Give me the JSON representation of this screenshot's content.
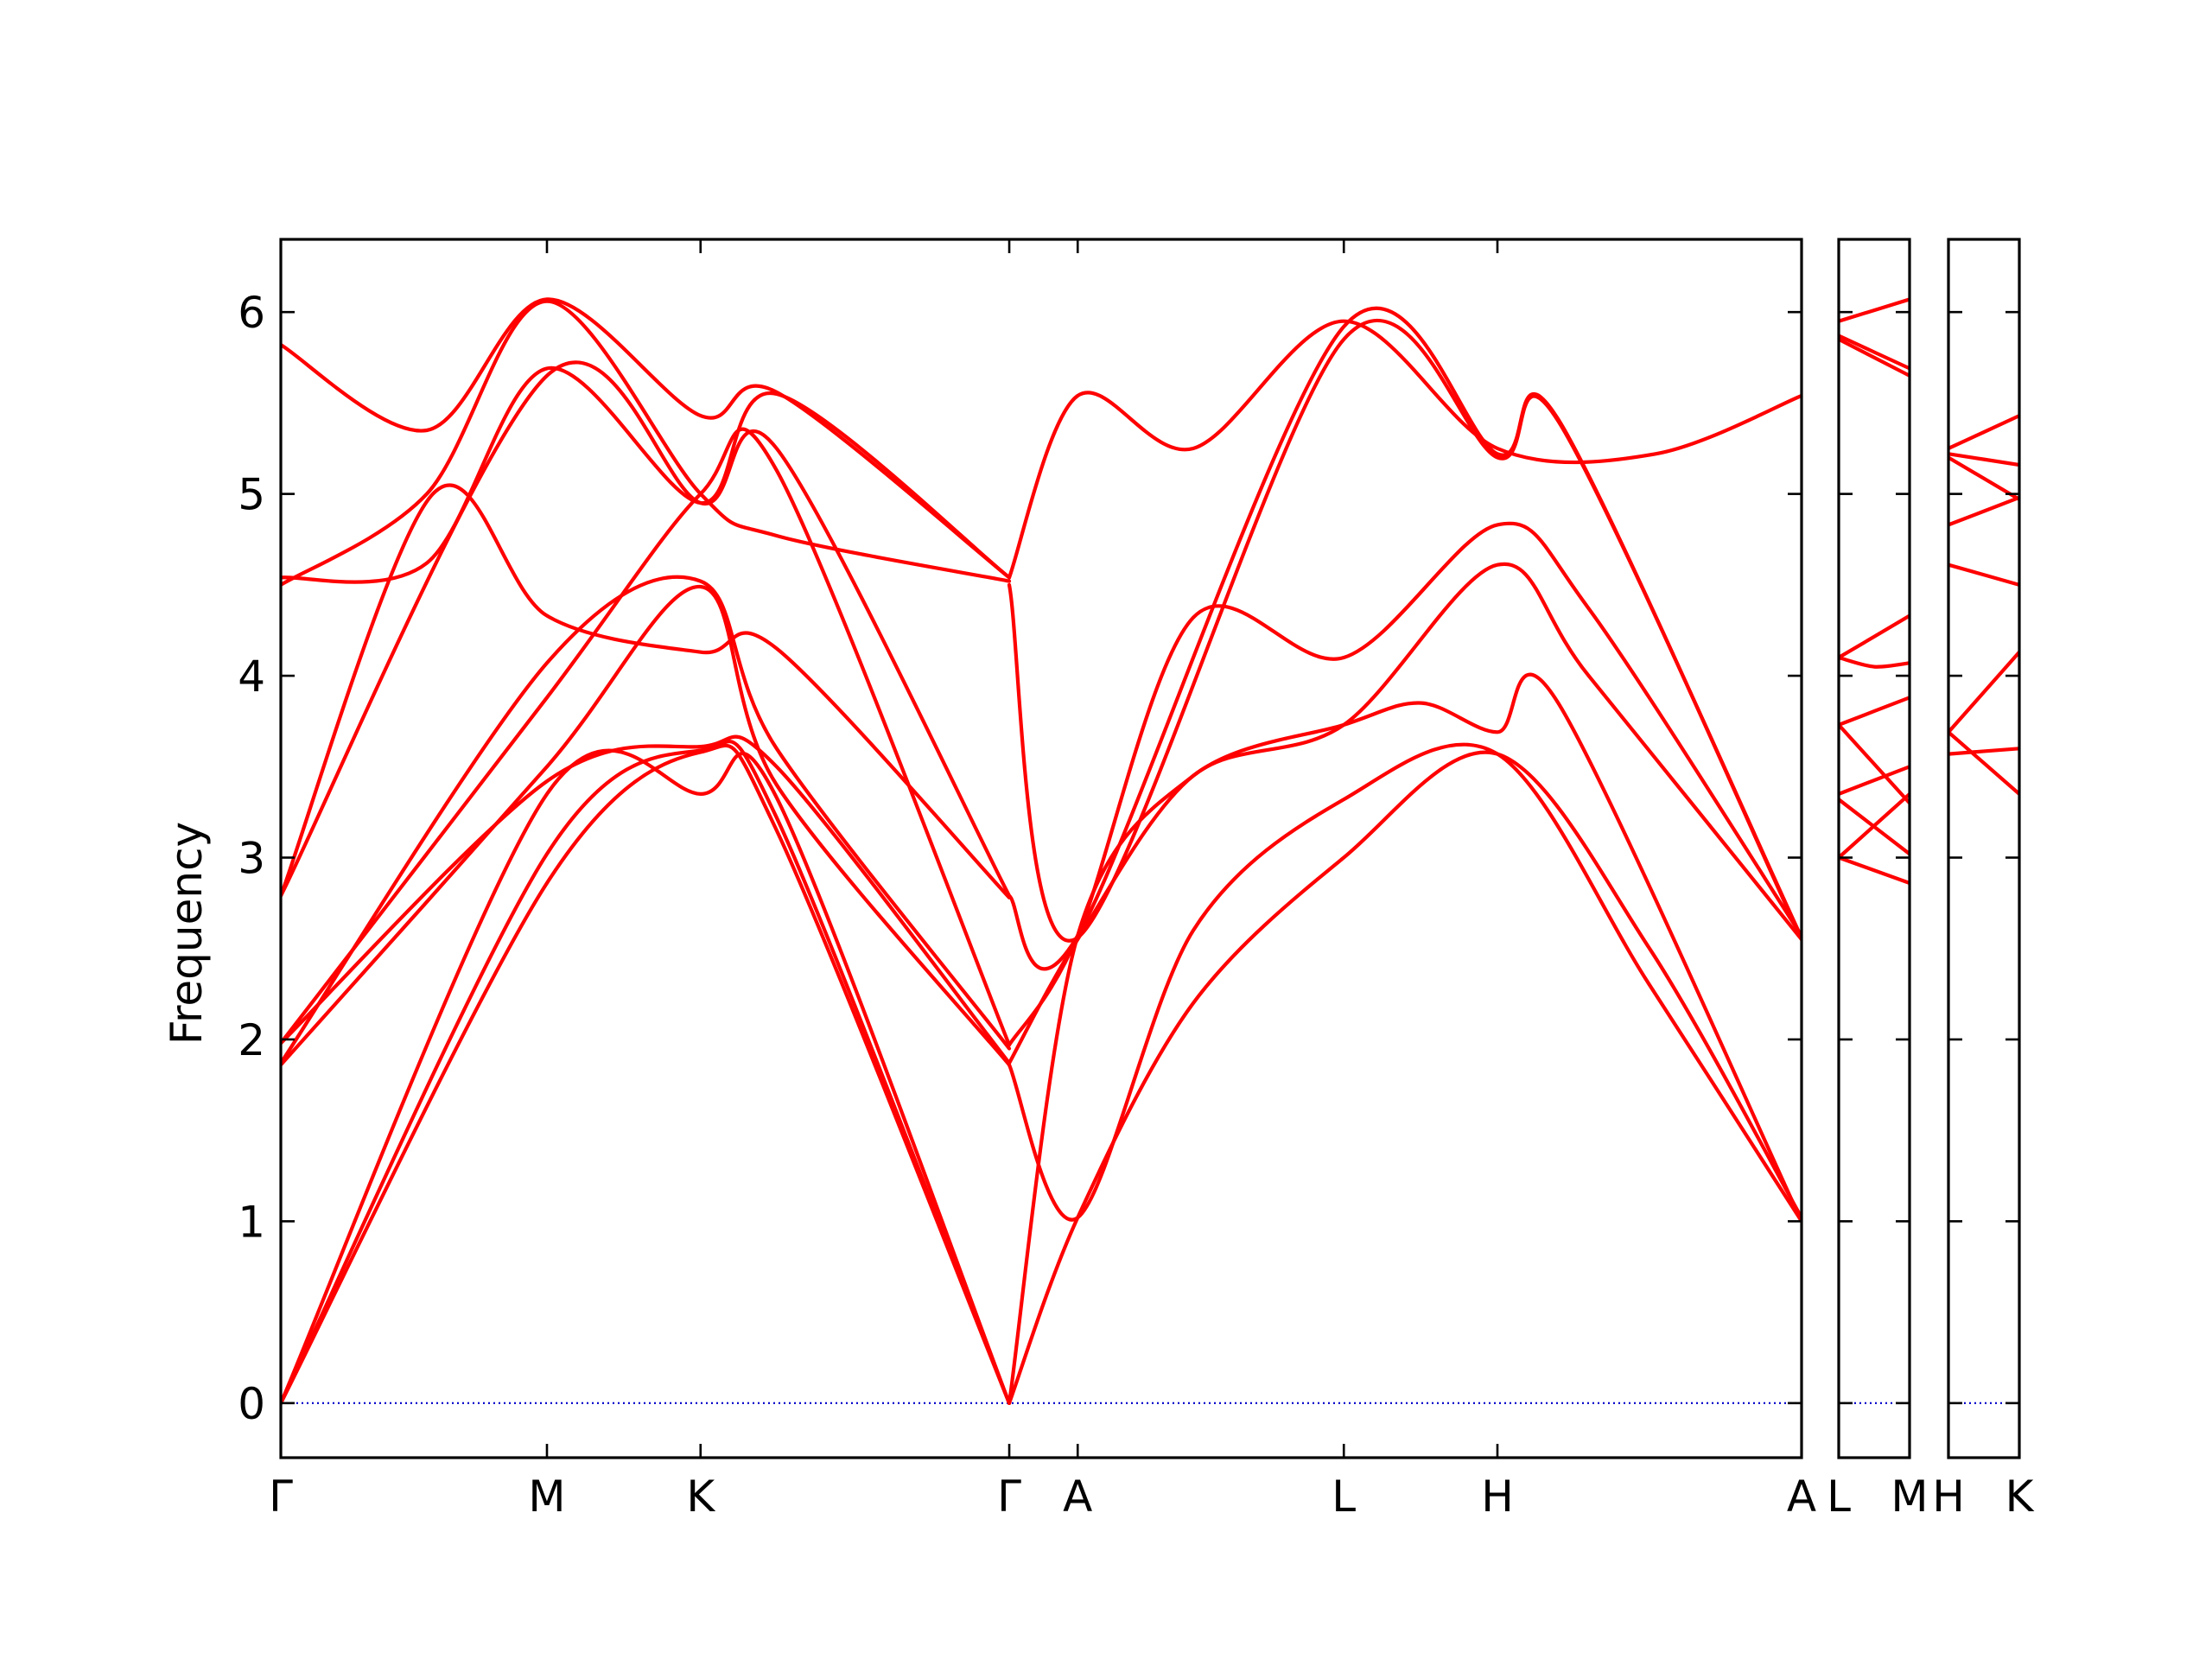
{
  "chart_data": {
    "type": "line",
    "ylabel": "Frequency",
    "xlabel": "",
    "ylim": [
      -0.3,
      6.4
    ],
    "yticks": [
      0,
      1,
      2,
      3,
      4,
      5,
      6
    ],
    "grid": false,
    "legend": "none",
    "colors": {
      "bands": "#ff0000",
      "zero_line": "#0000cc"
    },
    "panels": [
      {
        "x_range": [
          0,
          10
        ],
        "ticks": [
          {
            "x": 0,
            "label": "Γ"
          },
          {
            "x": 1.75,
            "label": "M"
          },
          {
            "x": 2.76,
            "label": "K"
          },
          {
            "x": 4.79,
            "label": "Γ"
          },
          {
            "x": 5.24,
            "label": "A"
          },
          {
            "x": 6.99,
            "label": "L"
          },
          {
            "x": 8.0,
            "label": "H"
          },
          {
            "x": 10.0,
            "label": "A"
          }
        ],
        "series": [
          {
            "x": [
              0,
              0.96,
              1.75,
              2.76,
              3.26,
              4.79
            ],
            "values": [
              5.82,
              5.35,
              6.07,
              5.43,
              5.56,
              4.54
            ]
          },
          {
            "x": [
              0,
              0.96,
              1.75,
              2.76,
              3.26,
              4.79
            ],
            "values": [
              4.5,
              5.0,
              6.06,
              5.0,
              4.77,
              4.52
            ]
          },
          {
            "x": [
              0,
              0.96,
              1.75,
              2.76,
              3.26,
              4.79
            ],
            "values": [
              4.54,
              4.62,
              5.69,
              4.95,
              5.55,
              4.54
            ]
          },
          {
            "x": [
              0,
              1.75,
              2.76,
              3.26,
              4.79
            ],
            "values": [
              2.79,
              5.65,
              4.95,
              5.25,
              2.79
            ]
          },
          {
            "x": [
              0,
              1.0,
              1.75,
              2.76,
              3.26,
              4.79
            ],
            "values": [
              2.79,
              5.0,
              4.33,
              4.13,
              4.15,
              2.78
            ]
          },
          {
            "x": [
              0,
              1.75,
              2.76,
              3.26,
              4.79
            ],
            "values": [
              1.98,
              3.88,
              5.0,
              5.13,
              1.97
            ]
          },
          {
            "x": [
              0,
              1.75,
              2.76,
              3.26,
              4.79
            ],
            "values": [
              1.87,
              4.07,
              4.52,
              3.6,
              1.95
            ]
          },
          {
            "x": [
              0,
              1.75,
              2.76,
              3.26,
              4.79
            ],
            "values": [
              1.86,
              3.5,
              4.49,
              3.4,
              1.86
            ]
          },
          {
            "x": [
              0,
              1.75,
              2.76,
              3.26,
              4.79
            ],
            "values": [
              1.98,
              3.42,
              3.61,
              3.5,
              1.87
            ]
          },
          {
            "x": [
              0,
              1.75,
              2.76,
              3.26,
              4.79
            ],
            "values": [
              0.0,
              3.35,
              3.35,
              3.33,
              0.0
            ]
          },
          {
            "x": [
              0,
              1.75,
              2.76,
              3.26,
              4.79
            ],
            "values": [
              0.0,
              3.02,
              3.59,
              3.22,
              0.0
            ]
          },
          {
            "x": [
              0,
              1.75,
              2.76,
              3.26,
              4.79
            ],
            "values": [
              0.0,
              2.86,
              3.58,
              3.15,
              0.0
            ]
          },
          {
            "x": [
              4.79,
              5.24,
              6.0,
              6.99,
              8.0,
              9.04,
              10.0
            ],
            "values": [
              4.54,
              5.54,
              5.25,
              5.95,
              5.25,
              5.22,
              5.54
            ]
          },
          {
            "x": [
              4.79,
              5.24,
              6.99,
              8.0,
              8.4,
              10.0
            ],
            "values": [
              4.5,
              2.56,
              5.85,
              5.2,
              5.4,
              2.56
            ]
          },
          {
            "x": [
              4.79,
              5.24,
              6.99,
              8.0,
              8.4,
              10.0
            ],
            "values": [
              2.79,
              2.57,
              5.92,
              5.22,
              5.41,
              2.55
            ]
          },
          {
            "x": [
              4.79,
              5.24,
              6.0,
              6.99,
              8.0,
              8.6,
              10.0
            ],
            "values": [
              1.97,
              2.57,
              4.32,
              4.1,
              4.83,
              4.37,
              2.57
            ]
          },
          {
            "x": [
              4.79,
              5.24,
              6.0,
              6.99,
              8.0,
              8.6,
              10.0
            ],
            "values": [
              1.87,
              2.55,
              3.45,
              3.73,
              4.61,
              4.0,
              2.55
            ]
          },
          {
            "x": [
              4.79,
              5.24,
              6.0,
              6.99,
              7.5,
              8.0,
              8.4,
              10.0
            ],
            "values": [
              0.0,
              2.57,
              3.45,
              3.73,
              3.85,
              3.69,
              3.85,
              1.0
            ]
          },
          {
            "x": [
              4.79,
              5.24,
              6.0,
              6.99,
              8.0,
              9.0,
              10.0
            ],
            "values": [
              1.86,
              1.02,
              2.6,
              3.32,
              3.57,
              2.3,
              1.0
            ]
          },
          {
            "x": [
              4.79,
              5.24,
              6.0,
              6.99,
              8.0,
              9.0,
              10.0
            ],
            "values": [
              0.0,
              1.02,
              2.2,
              3.0,
              3.57,
              2.5,
              1.02
            ]
          }
        ]
      },
      {
        "x_range": [
          0,
          1
        ],
        "ticks": [
          {
            "x": 0,
            "label": "L"
          },
          {
            "x": 1,
            "label": "M"
          }
        ],
        "series": [
          {
            "x": [
              0,
              1
            ],
            "values": [
              5.95,
              6.07
            ]
          },
          {
            "x": [
              0,
              1
            ],
            "values": [
              5.87,
              5.69
            ]
          },
          {
            "x": [
              0,
              1
            ],
            "values": [
              5.85,
              5.65
            ]
          },
          {
            "x": [
              0,
              1
            ],
            "values": [
              4.1,
              4.33
            ]
          },
          {
            "x": [
              0,
              0.5,
              1
            ],
            "values": [
              4.1,
              4.05,
              4.07
            ]
          },
          {
            "x": [
              0,
              1
            ],
            "values": [
              3.73,
              3.88
            ]
          },
          {
            "x": [
              0,
              1
            ],
            "values": [
              3.73,
              3.3
            ]
          },
          {
            "x": [
              0,
              1
            ],
            "values": [
              3.35,
              3.5
            ]
          },
          {
            "x": [
              0,
              1
            ],
            "values": [
              3.32,
              3.02
            ]
          },
          {
            "x": [
              0,
              1
            ],
            "values": [
              3.0,
              3.35
            ]
          },
          {
            "x": [
              0,
              1
            ],
            "values": [
              3.0,
              2.86
            ]
          }
        ]
      },
      {
        "x_range": [
          0,
          1
        ],
        "ticks": [
          {
            "x": 0,
            "label": "H"
          },
          {
            "x": 1,
            "label": "K"
          }
        ],
        "series": [
          {
            "x": [
              0,
              1
            ],
            "values": [
              5.25,
              5.43
            ]
          },
          {
            "x": [
              0,
              1
            ],
            "values": [
              5.22,
              5.16
            ]
          },
          {
            "x": [
              0,
              1
            ],
            "values": [
              5.2,
              4.97
            ]
          },
          {
            "x": [
              0,
              1
            ],
            "values": [
              4.83,
              4.98
            ]
          },
          {
            "x": [
              0,
              1
            ],
            "values": [
              4.61,
              4.5
            ]
          },
          {
            "x": [
              0,
              1
            ],
            "values": [
              3.69,
              4.13
            ]
          },
          {
            "x": [
              0,
              1
            ],
            "values": [
              3.69,
              3.35
            ]
          },
          {
            "x": [
              0,
              1
            ],
            "values": [
              3.57,
              3.6
            ]
          }
        ]
      }
    ]
  }
}
